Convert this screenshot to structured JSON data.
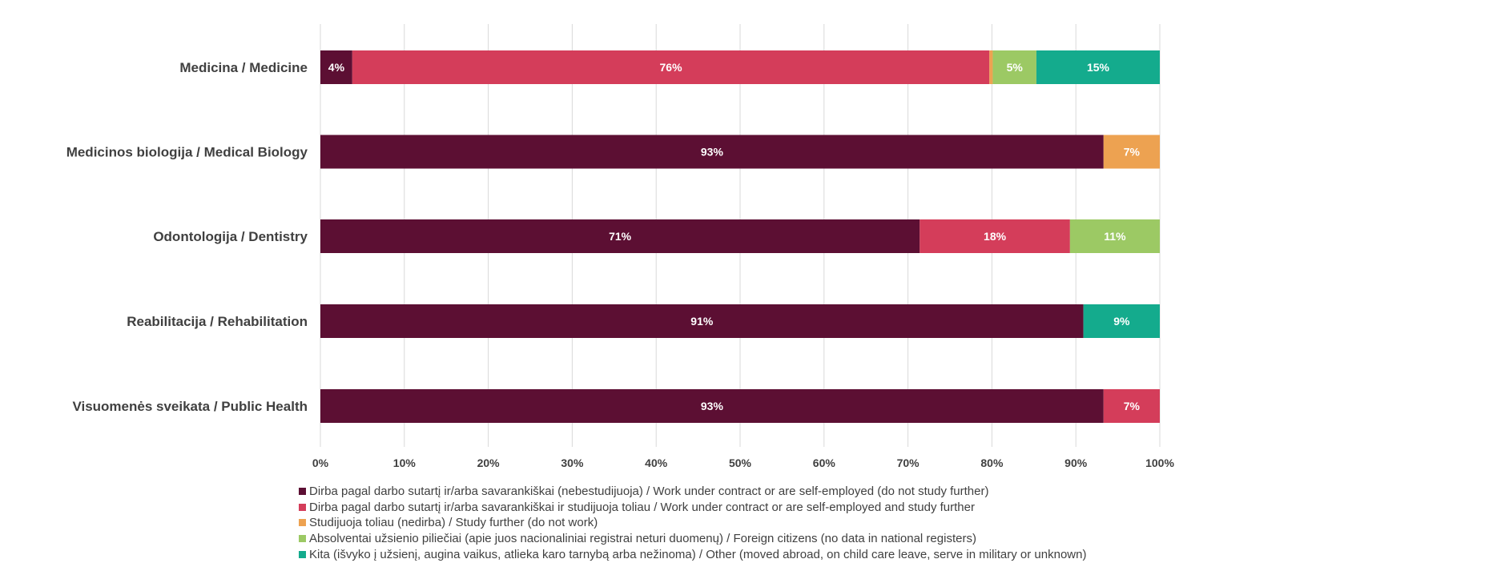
{
  "chart_data": {
    "type": "bar",
    "orientation": "horizontal",
    "stacked": true,
    "title": "",
    "xlabel": "",
    "ylabel": "",
    "xlim": [
      0,
      100
    ],
    "grid": true,
    "legend_position": "bottom-left",
    "x_ticks": [
      "0%",
      "10%",
      "20%",
      "30%",
      "40%",
      "50%",
      "60%",
      "70%",
      "80%",
      "90%",
      "100%"
    ],
    "categories": [
      "Medicina / Medicine",
      "Medicinos biologija / Medical Biology",
      "Odontologija / Dentistry",
      "Reabilitacija / Rehabilitation",
      "Visuomenės sveikata / Public Health"
    ],
    "series": [
      {
        "name": "Dirba pagal darbo sutartį ir/arba savarankiškai (nebestudijuoja) / Work under contract or are self-employed (do not study further)",
        "color": "#5c0f33",
        "values": [
          3.8,
          93.3,
          71.4,
          90.9,
          93.3
        ],
        "labels": [
          "4%",
          "93%",
          "71%",
          "91%",
          "93%"
        ]
      },
      {
        "name": "Dirba pagal darbo sutartį ir/arba savarankiškai  ir studijuoja toliau / Work under contract or are self-employed and study further",
        "color": "#d43d5a",
        "values": [
          75.9,
          0,
          17.9,
          0,
          6.7
        ],
        "labels": [
          "76%",
          "",
          "18%",
          "",
          "7%"
        ]
      },
      {
        "name": "Studijuoja toliau (nedirba) / Study further (do not work)",
        "color": "#eda251",
        "values": [
          0.4,
          6.7,
          0,
          0,
          0
        ],
        "labels": [
          "",
          "7%",
          "",
          "",
          ""
        ]
      },
      {
        "name": "Absolventai užsienio piliečiai (apie juos nacionaliniai registrai neturi duomenų) / Foreign citizens (no data in national registers)",
        "color": "#9cc964",
        "values": [
          5.2,
          0,
          10.7,
          0,
          0
        ],
        "labels": [
          "5%",
          "",
          "11%",
          "",
          ""
        ]
      },
      {
        "name": "Kita (išvyko į užsienį, augina vaikus, atlieka karo tarnybą arba nežinoma) / Other (moved abroad, on child care leave, serve in military or unknown)",
        "color": "#14ab8d",
        "values": [
          14.7,
          0,
          0,
          9.1,
          0
        ],
        "labels": [
          "15%",
          "",
          "",
          "9%",
          ""
        ]
      }
    ]
  }
}
